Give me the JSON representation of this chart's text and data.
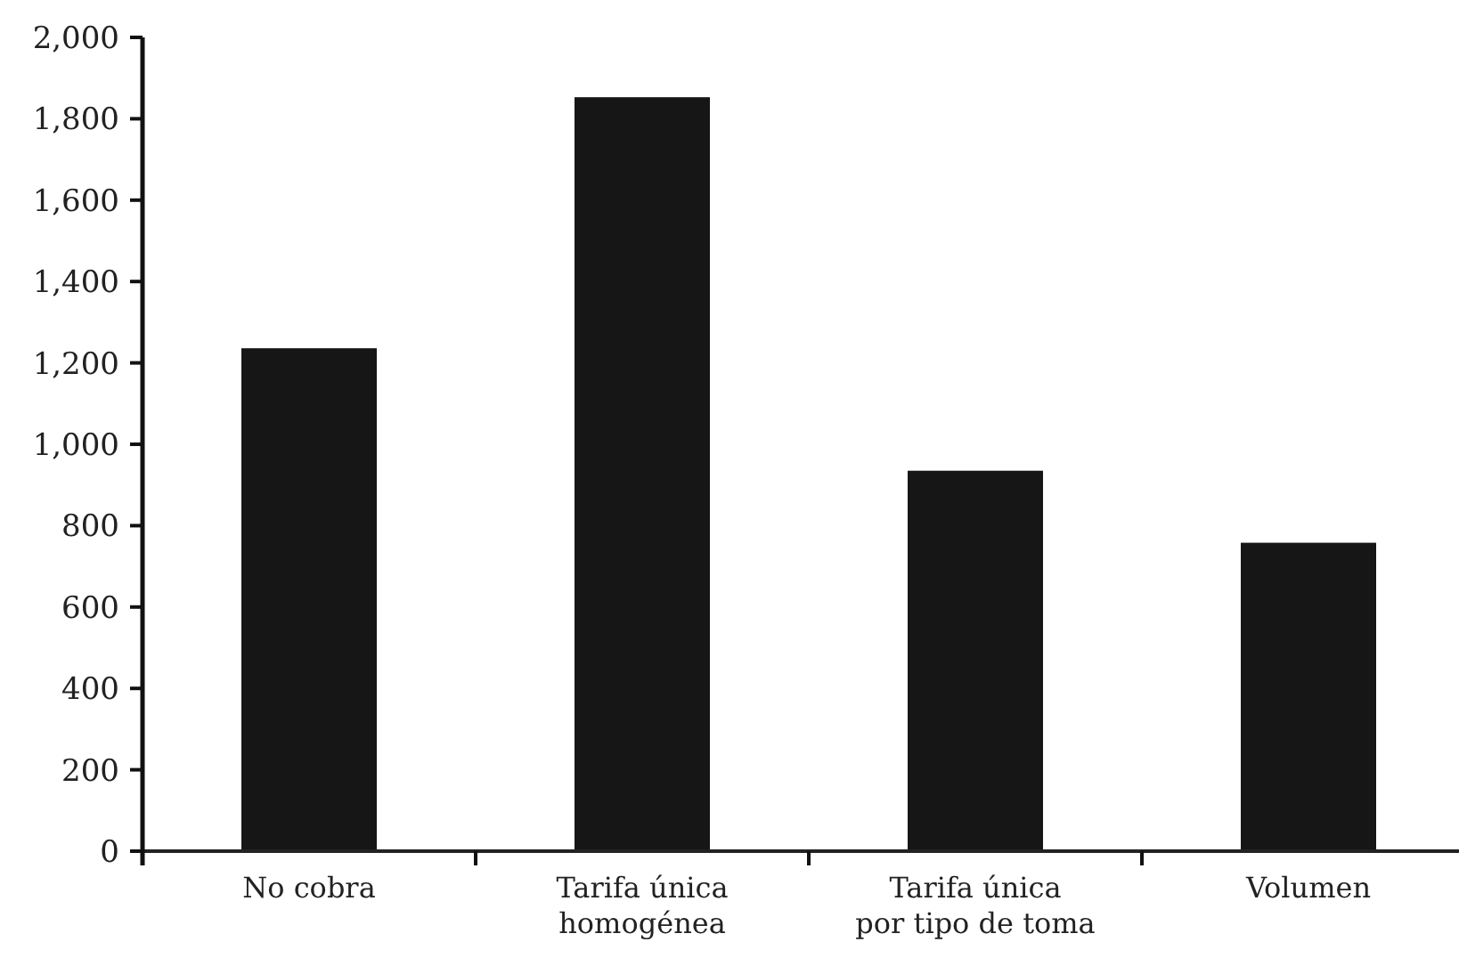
{
  "chart_data": {
    "type": "bar",
    "categories": [
      "No cobra",
      "Tarifa única\nhomogénea",
      "Tarifa única\npor tipo de toma",
      "Volumen"
    ],
    "values": [
      1236,
      1853,
      935,
      758
    ],
    "color": "#161616",
    "ylim": [
      0,
      2000
    ],
    "yticks": [
      {
        "value": 0,
        "label": "0"
      },
      {
        "value": 200,
        "label": "200"
      },
      {
        "value": 400,
        "label": "400"
      },
      {
        "value": 600,
        "label": "600"
      },
      {
        "value": 800,
        "label": "800"
      },
      {
        "value": 1000,
        "label": "1,000"
      },
      {
        "value": 1200,
        "label": "1,200"
      },
      {
        "value": 1400,
        "label": "1,400"
      },
      {
        "value": 1600,
        "label": "1,600"
      },
      {
        "value": 1800,
        "label": "1,800"
      },
      {
        "value": 2000,
        "label": "2,000"
      }
    ]
  }
}
